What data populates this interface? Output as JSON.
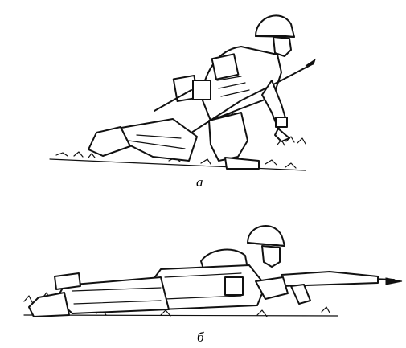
{
  "figure": {
    "panels": [
      {
        "label": "а"
      },
      {
        "label": "б"
      }
    ]
  }
}
